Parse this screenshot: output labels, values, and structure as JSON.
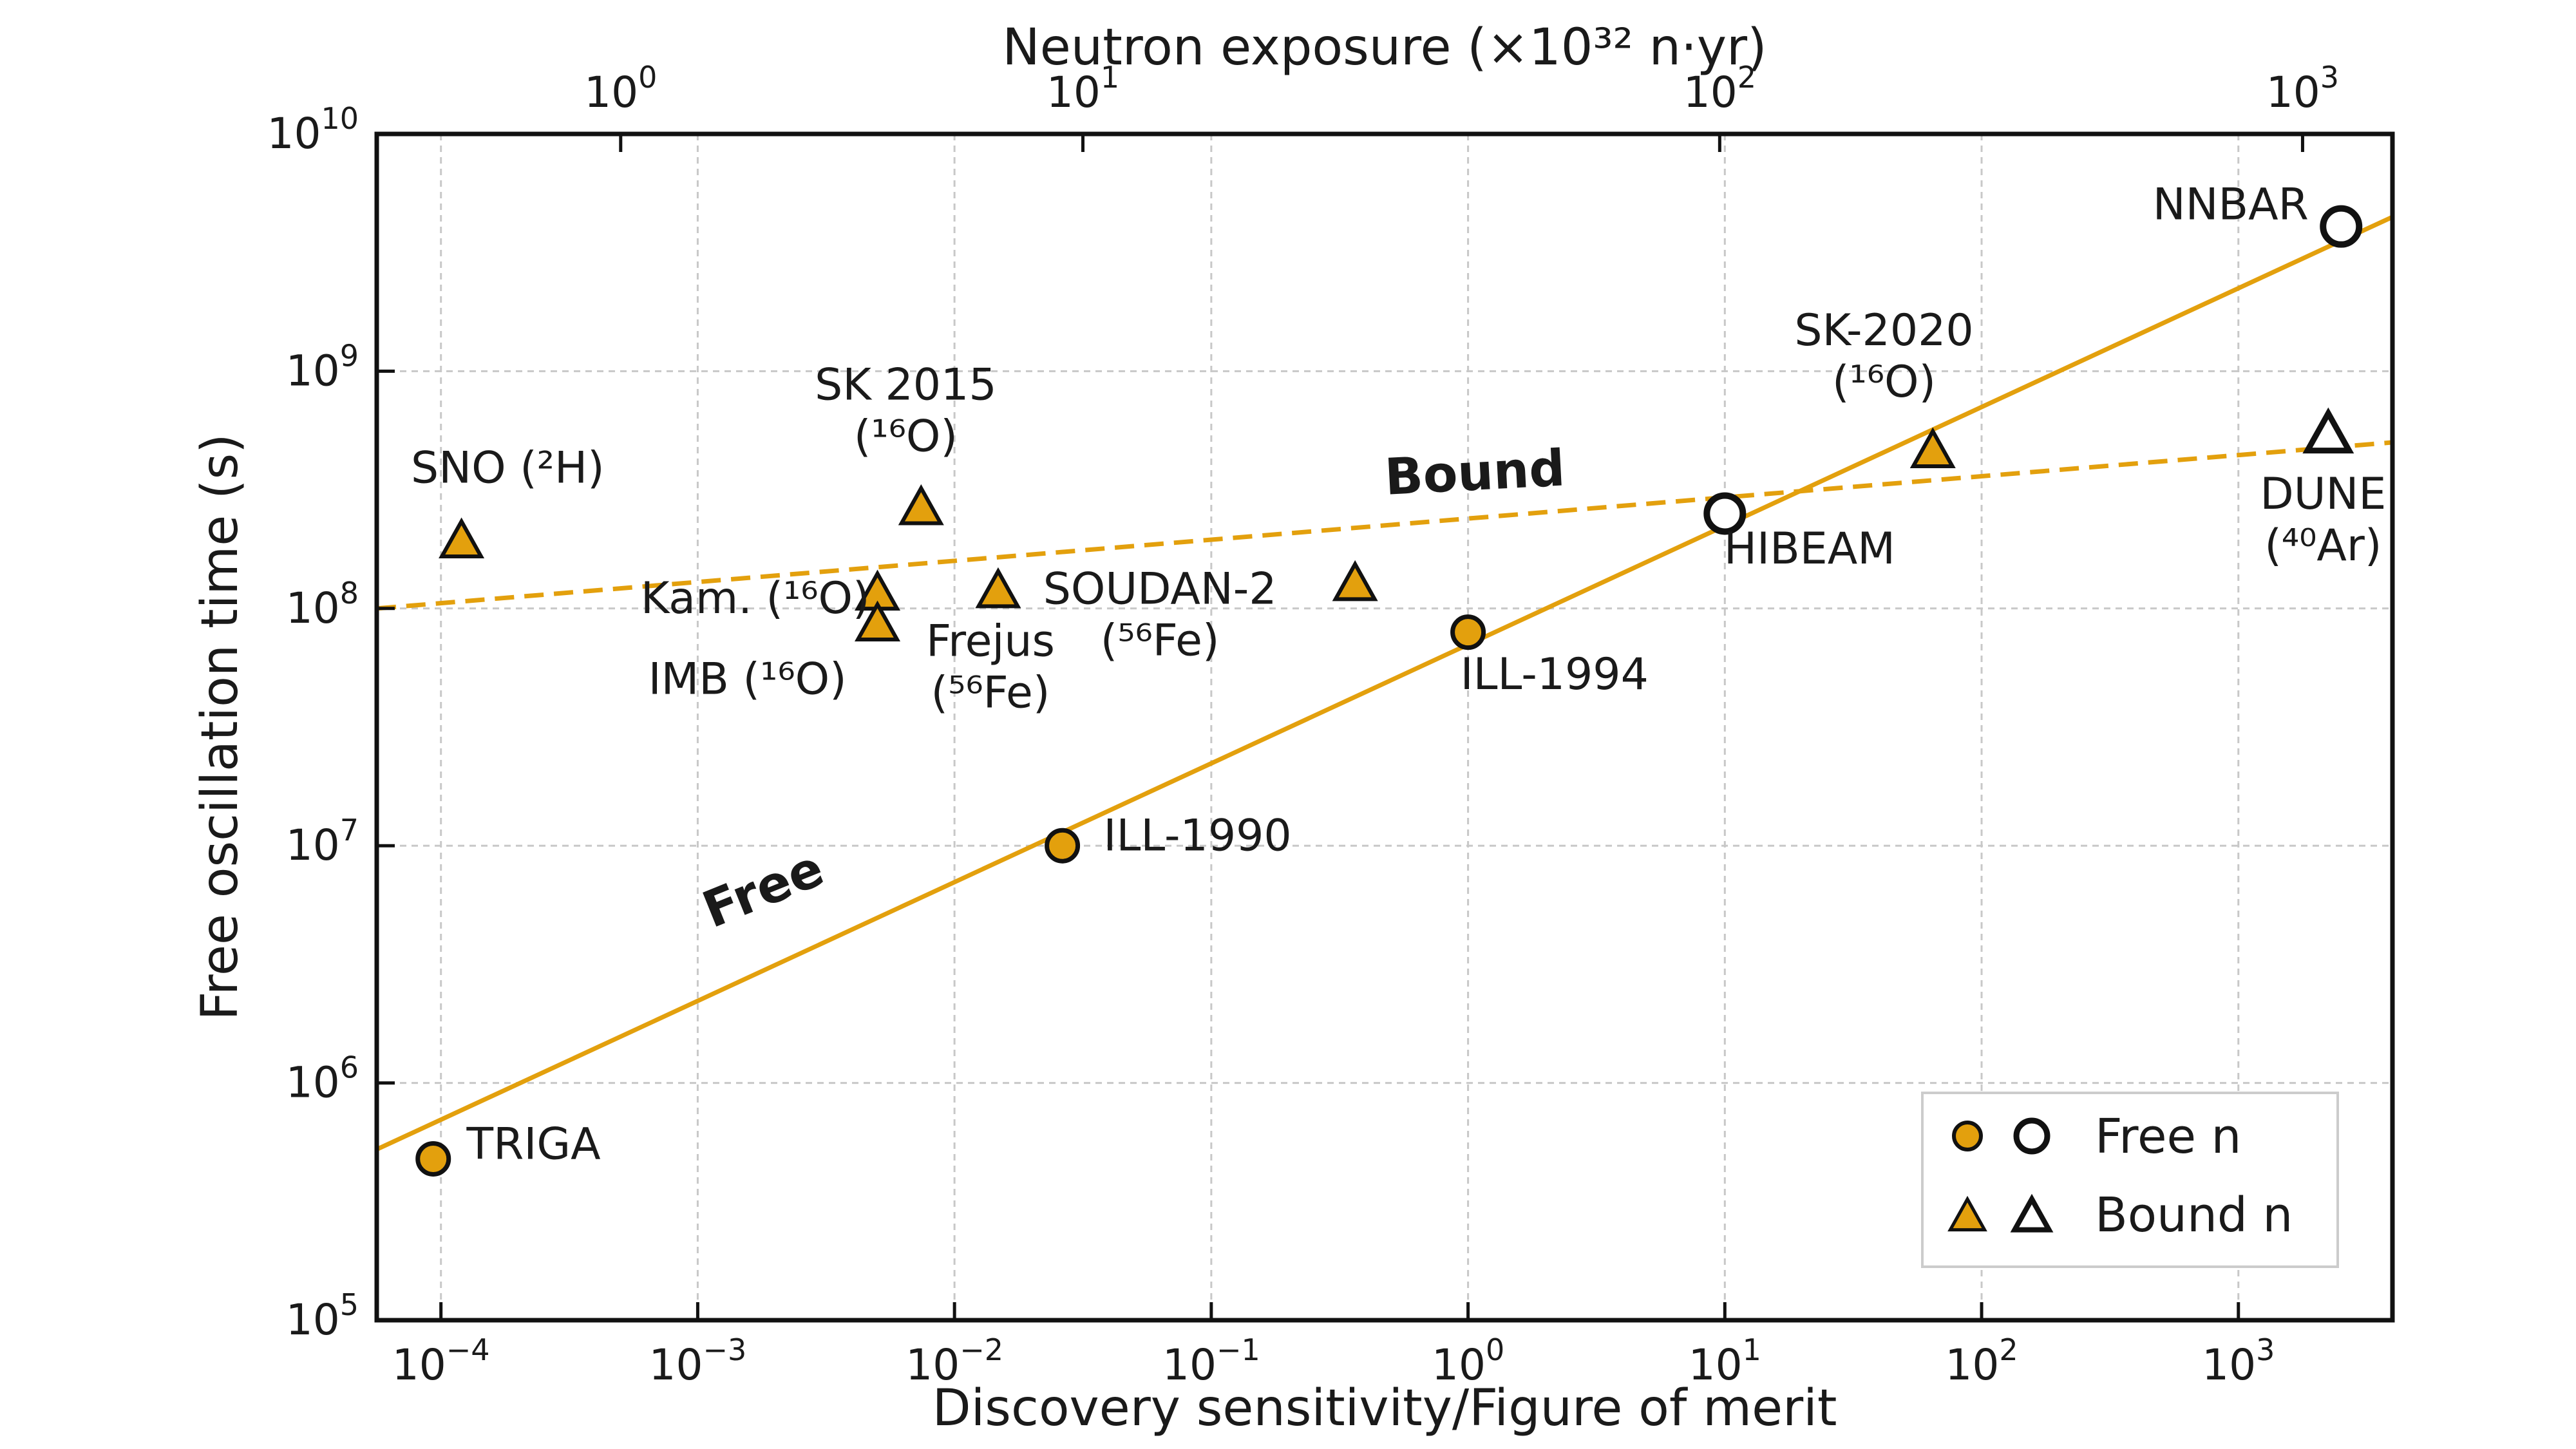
{
  "chart_data": {
    "type": "scatter",
    "scale": "log-log",
    "xlabel": "Discovery sensitivity/Figure of merit",
    "ylabel": "Free oscillation time (s)",
    "top_xlabel": "Neutron exposure (×10³² n·yr)",
    "xlim_exp": [
      -4.25,
      3.6
    ],
    "ylim_exp": [
      5,
      10
    ],
    "x_ticks": [
      {
        "base": "10",
        "exp": "−4",
        "value": -4
      },
      {
        "base": "10",
        "exp": "−3",
        "value": -3
      },
      {
        "base": "10",
        "exp": "−2",
        "value": -2
      },
      {
        "base": "10",
        "exp": "−1",
        "value": -1
      },
      {
        "base": "10",
        "exp": "0",
        "value": 0
      },
      {
        "base": "10",
        "exp": "1",
        "value": 1
      },
      {
        "base": "10",
        "exp": "2",
        "value": 2
      },
      {
        "base": "10",
        "exp": "3",
        "value": 3
      }
    ],
    "y_ticks": [
      {
        "base": "10",
        "exp": "5",
        "value": 5
      },
      {
        "base": "10",
        "exp": "6",
        "value": 6
      },
      {
        "base": "10",
        "exp": "7",
        "value": 7
      },
      {
        "base": "10",
        "exp": "8",
        "value": 8
      },
      {
        "base": "10",
        "exp": "9",
        "value": 9
      },
      {
        "base": "10",
        "exp": "10",
        "value": 10
      }
    ],
    "top_ticks": [
      {
        "base": "10",
        "exp": "0",
        "value": -3.3
      },
      {
        "base": "10",
        "exp": "1",
        "value": -1.5
      },
      {
        "base": "10",
        "exp": "2",
        "value": 0.98
      },
      {
        "base": "10",
        "exp": "3",
        "value": 3.25
      }
    ],
    "grid": true,
    "color": "#E3A00D",
    "lines": [
      {
        "name": "Free",
        "style": "solid",
        "x_exp": [
          -4.25,
          3.6
        ],
        "y_exp": [
          5.72,
          9.65
        ],
        "label": "Free",
        "label_x_exp": -2.72,
        "label_y_exp": 6.75,
        "label_angle": -22
      },
      {
        "name": "Bound",
        "style": "dashed",
        "x_exp": [
          -4.25,
          3.6
        ],
        "y_exp": [
          8.0,
          8.7
        ],
        "label": "Bound",
        "label_x_exp": 0.03,
        "label_y_exp": 8.5,
        "label_angle": -3
      }
    ],
    "points": [
      {
        "name": "TRIGA",
        "kind": "free",
        "filled": true,
        "x_exp": -4.03,
        "y_exp": 5.68,
        "label": [
          "TRIGA"
        ],
        "label_x_exp": -3.9,
        "label_y_exp": 5.68,
        "anchor": "start"
      },
      {
        "name": "ILL-1990",
        "kind": "free",
        "filled": true,
        "x_exp": -1.58,
        "y_exp": 7.0,
        "label": [
          "ILL-1990"
        ],
        "label_x_exp": -1.42,
        "label_y_exp": 6.98,
        "anchor": "start"
      },
      {
        "name": "ILL-1994",
        "kind": "free",
        "filled": true,
        "x_exp": 0.0,
        "y_exp": 7.9,
        "label": [
          "ILL-1994"
        ],
        "label_x_exp": -0.03,
        "label_y_exp": 7.66,
        "anchor": "start"
      },
      {
        "name": "HIBEAM",
        "kind": "free",
        "filled": false,
        "x_exp": 1.0,
        "y_exp": 8.4,
        "label": [
          "HIBEAM"
        ],
        "label_x_exp": 1.33,
        "label_y_exp": 8.19,
        "anchor": "middle"
      },
      {
        "name": "NNBAR",
        "kind": "free",
        "filled": false,
        "x_exp": 3.4,
        "y_exp": 9.61,
        "label": [
          "NNBAR"
        ],
        "label_x_exp": 2.97,
        "label_y_exp": 9.64,
        "anchor": "middle"
      },
      {
        "name": "SNO",
        "kind": "bound",
        "filled": true,
        "x_exp": -3.92,
        "y_exp": 8.28,
        "label": [
          "SNO (²H)"
        ],
        "label_x_exp": -3.74,
        "label_y_exp": 8.53,
        "anchor": "middle"
      },
      {
        "name": "SK 2015",
        "kind": "bound",
        "filled": true,
        "x_exp": -2.13,
        "y_exp": 8.42,
        "label": [
          "SK 2015",
          "(¹⁶O)"
        ],
        "label_x_exp": -2.19,
        "label_y_exp": 8.88,
        "anchor": "middle"
      },
      {
        "name": "Kam.",
        "kind": "bound",
        "filled": true,
        "x_exp": -2.3,
        "y_exp": 8.06,
        "label": [
          "Kam. (¹⁶O)"
        ],
        "label_x_exp": -2.33,
        "label_y_exp": 7.98,
        "anchor": "end"
      },
      {
        "name": "IMB",
        "kind": "bound",
        "filled": true,
        "x_exp": -2.3,
        "y_exp": 7.93,
        "label": [
          "IMB (¹⁶O)"
        ],
        "label_x_exp": -2.42,
        "label_y_exp": 7.64,
        "anchor": "end"
      },
      {
        "name": "Frejus",
        "kind": "bound",
        "filled": true,
        "x_exp": -1.83,
        "y_exp": 8.07,
        "label": [
          "Frejus",
          "(⁵⁶Fe)"
        ],
        "label_x_exp": -1.86,
        "label_y_exp": 7.8,
        "anchor": "middle"
      },
      {
        "name": "SOUDAN-2",
        "kind": "bound",
        "filled": true,
        "x_exp": -0.44,
        "y_exp": 8.1,
        "label": [
          "SOUDAN-2",
          "(⁵⁶Fe)"
        ],
        "label_x_exp": -1.2,
        "label_y_exp": 8.02,
        "anchor": "middle"
      },
      {
        "name": "SK-2020",
        "kind": "bound",
        "filled": true,
        "x_exp": 1.81,
        "y_exp": 8.66,
        "label": [
          "SK-2020",
          "(¹⁶O)"
        ],
        "label_x_exp": 1.62,
        "label_y_exp": 9.11,
        "anchor": "middle"
      },
      {
        "name": "DUNE",
        "kind": "bound",
        "filled": false,
        "x_exp": 3.35,
        "y_exp": 8.73,
        "label": [
          "DUNE",
          "(⁴⁰Ar)"
        ],
        "label_x_exp": 3.33,
        "label_y_exp": 8.42,
        "anchor": "middle"
      }
    ],
    "legend": {
      "position": "lower-right",
      "entries": [
        {
          "label": "Free n",
          "marker": "circle"
        },
        {
          "label": "Bound n",
          "marker": "triangle"
        }
      ]
    }
  }
}
